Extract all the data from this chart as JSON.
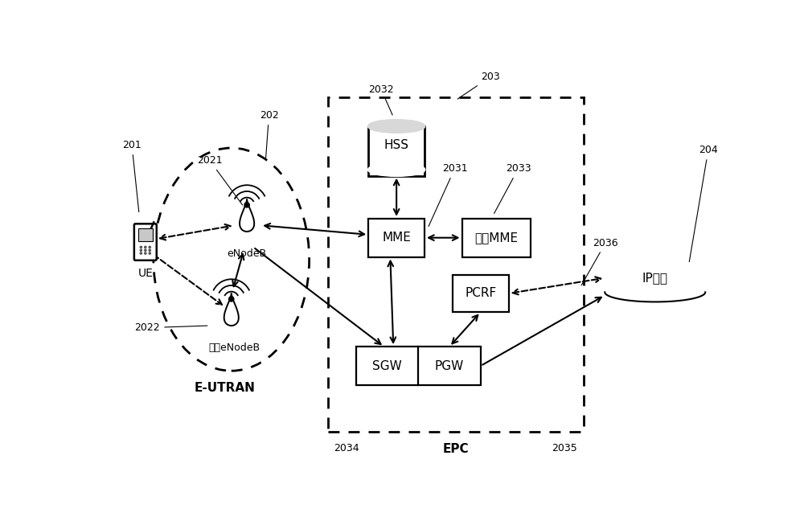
{
  "bg_color": "#ffffff",
  "labels": {
    "UE": "UE",
    "eNodeB": "eNodeB",
    "other_eNodeB": "其它eNodeB",
    "E_UTRAN": "E-UTRAN",
    "HSS": "HSS",
    "MME": "MME",
    "other_MME": "其它MME",
    "SGW": "SGW",
    "PGW": "PGW",
    "PCRF": "PCRF",
    "EPC": "EPC",
    "IP": "IP业务",
    "n201": "201",
    "n202": "202",
    "n203": "203",
    "n204": "204",
    "n2021": "2021",
    "n2022": "2022",
    "n2031": "2031",
    "n2032": "2032",
    "n2033": "2033",
    "n2034": "2034",
    "n2035": "2035",
    "n2036": "2036"
  }
}
